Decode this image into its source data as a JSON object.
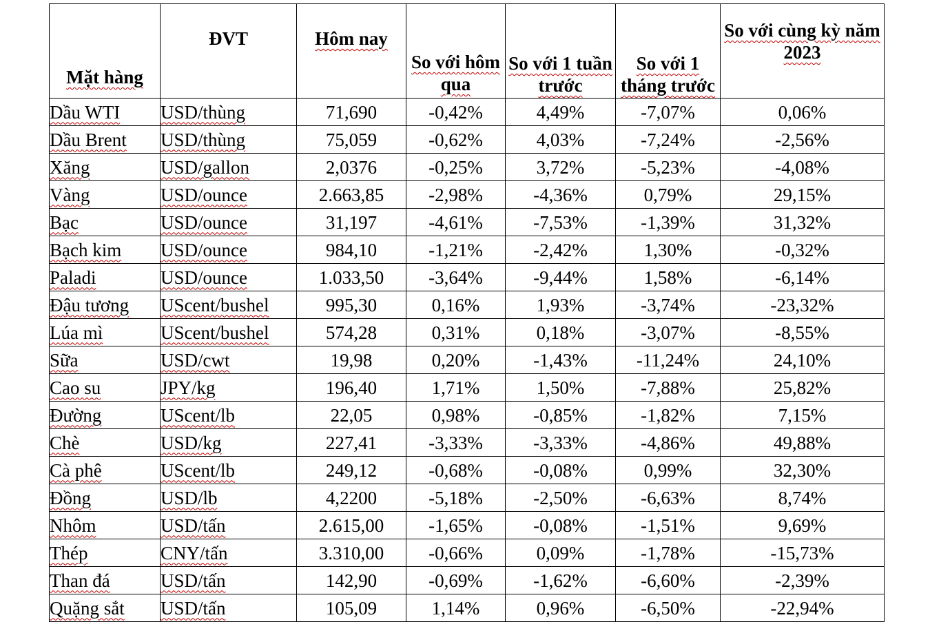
{
  "table": {
    "headers": [
      "Mặt hàng",
      "ĐVT",
      "Hôm nay",
      "So với hôm qua",
      "So với 1 tuần trước",
      "So với 1 tháng trước",
      "So với cùng kỳ năm 2023"
    ],
    "rows": [
      {
        "item": "Dầu WTI",
        "unit": "USD/thùng",
        "today": "71,690",
        "vs_day": "-0,42%",
        "vs_week": "4,49%",
        "vs_month": "-7,07%",
        "vs_year": "0,06%"
      },
      {
        "item": "Dầu Brent",
        "unit": "USD/thùng",
        "today": "75,059",
        "vs_day": "-0,62%",
        "vs_week": "4,03%",
        "vs_month": "-7,24%",
        "vs_year": "-2,56%"
      },
      {
        "item": "Xăng",
        "unit": "USD/gallon",
        "today": "2,0376",
        "vs_day": "-0,25%",
        "vs_week": "3,72%",
        "vs_month": "-5,23%",
        "vs_year": "-4,08%"
      },
      {
        "item": "Vàng",
        "unit": "USD/ounce",
        "today": "2.663,85",
        "vs_day": "-2,98%",
        "vs_week": "-4,36%",
        "vs_month": "0,79%",
        "vs_year": "29,15%"
      },
      {
        "item": "Bạc",
        "unit": "USD/ounce",
        "today": "31,197",
        "vs_day": "-4,61%",
        "vs_week": "-7,53%",
        "vs_month": "-1,39%",
        "vs_year": "31,32%"
      },
      {
        "item": "Bạch kim",
        "unit": "USD/ounce",
        "today": "984,10",
        "vs_day": "-1,21%",
        "vs_week": "-2,42%",
        "vs_month": "1,30%",
        "vs_year": "-0,32%"
      },
      {
        "item": "Paladi",
        "unit": "USD/ounce",
        "today": "1.033,50",
        "vs_day": "-3,64%",
        "vs_week": "-9,44%",
        "vs_month": "1,58%",
        "vs_year": "-6,14%"
      },
      {
        "item": "Đậu tương",
        "unit": "UScent/bushel",
        "today": "995,30",
        "vs_day": "0,16%",
        "vs_week": "1,93%",
        "vs_month": "-3,74%",
        "vs_year": "-23,32%"
      },
      {
        "item": "Lúa mì",
        "unit": "UScent/bushel",
        "today": "574,28",
        "vs_day": "0,31%",
        "vs_week": "0,18%",
        "vs_month": "-3,07%",
        "vs_year": "-8,55%"
      },
      {
        "item": "Sữa",
        "unit": "USD/cwt",
        "today": "19,98",
        "vs_day": "0,20%",
        "vs_week": "-1,43%",
        "vs_month": "-11,24%",
        "vs_year": "24,10%"
      },
      {
        "item": "Cao su",
        "unit": "JPY/kg",
        "today": "196,40",
        "vs_day": "1,71%",
        "vs_week": "1,50%",
        "vs_month": "-7,88%",
        "vs_year": "25,82%"
      },
      {
        "item": "Đường",
        "unit": "UScent/lb",
        "today": "22,05",
        "vs_day": "0,98%",
        "vs_week": "-0,85%",
        "vs_month": "-1,82%",
        "vs_year": "7,15%"
      },
      {
        "item": "Chè",
        "unit": "USD/kg",
        "today": "227,41",
        "vs_day": "-3,33%",
        "vs_week": "-3,33%",
        "vs_month": "-4,86%",
        "vs_year": "49,88%"
      },
      {
        "item": "Cà phê",
        "unit": "UScent/lb",
        "today": "249,12",
        "vs_day": "-0,68%",
        "vs_week": "-0,08%",
        "vs_month": "0,99%",
        "vs_year": "32,30%"
      },
      {
        "item": "Đồng",
        "unit": "USD/lb",
        "today": "4,2200",
        "vs_day": "-5,18%",
        "vs_week": "-2,50%",
        "vs_month": "-6,63%",
        "vs_year": "8,74%"
      },
      {
        "item": "Nhôm",
        "unit": "USD/tấn",
        "today": "2.615,00",
        "vs_day": "-1,65%",
        "vs_week": "-0,08%",
        "vs_month": "-1,51%",
        "vs_year": "9,69%"
      },
      {
        "item": "Thép",
        "unit": "CNY/tấn",
        "today": "3.310,00",
        "vs_day": "-0,66%",
        "vs_week": "0,09%",
        "vs_month": "-1,78%",
        "vs_year": "-15,73%"
      },
      {
        "item": "Than đá",
        "unit": "USD/tấn",
        "today": "142,90",
        "vs_day": "-0,69%",
        "vs_week": "-1,62%",
        "vs_month": "-6,60%",
        "vs_year": "-2,39%"
      },
      {
        "item": "Quặng sắt",
        "unit": "USD/tấn",
        "today": "105,09",
        "vs_day": "1,14%",
        "vs_week": "0,96%",
        "vs_month": "-6,50%",
        "vs_year": "-22,94%"
      }
    ]
  }
}
